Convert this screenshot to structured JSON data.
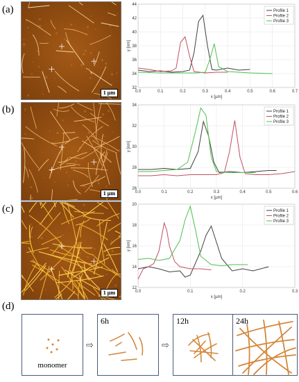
{
  "panels": [
    {
      "letter": "(a)",
      "scale": "1 μm"
    },
    {
      "letter": "(b)",
      "scale": "1 μm"
    },
    {
      "letter": "(c)",
      "scale": "1 μm"
    }
  ],
  "panel_d_letter": "(d)",
  "stages": {
    "monomer": "monomer",
    "t1": "6h",
    "t2": "12h",
    "t3": "24h"
  },
  "series_colors": [
    "#404040",
    "#c0505f",
    "#4dbf4d"
  ],
  "chart_data": [
    {
      "type": "line",
      "xlabel": "x [μm]",
      "ylabel": "y [nm]",
      "xlim": [
        0,
        0.7
      ],
      "ylim": [
        32,
        44
      ],
      "xticks": [
        0.0,
        0.1,
        0.2,
        0.3,
        0.4,
        0.5,
        0.6,
        0.7
      ],
      "yticks": [
        32,
        34,
        36,
        38,
        40,
        42,
        44
      ],
      "legend": "top-right",
      "series": [
        {
          "name": "Profile 1",
          "x": [
            0.0,
            0.05,
            0.1,
            0.15,
            0.2,
            0.23,
            0.25,
            0.27,
            0.29,
            0.31,
            0.33,
            0.35,
            0.4,
            0.45,
            0.5
          ],
          "y": [
            34.5,
            34.3,
            34.4,
            34.2,
            34.3,
            34.5,
            37.0,
            41.5,
            42.4,
            38.0,
            34.6,
            34.5,
            34.8,
            34.5,
            34.6
          ]
        },
        {
          "name": "Profile 2",
          "x": [
            0.0,
            0.05,
            0.1,
            0.15,
            0.17,
            0.19,
            0.21,
            0.23,
            0.25,
            0.3,
            0.35,
            0.4
          ],
          "y": [
            34.8,
            34.6,
            34.3,
            34.4,
            34.8,
            38.5,
            39.3,
            36.5,
            34.3,
            34.1,
            34.2,
            34.2
          ]
        },
        {
          "name": "Profile 3",
          "x": [
            0.0,
            0.1,
            0.2,
            0.26,
            0.3,
            0.32,
            0.34,
            0.36,
            0.4,
            0.5,
            0.6
          ],
          "y": [
            34.2,
            34.1,
            34.1,
            34.1,
            34.2,
            36.0,
            38.3,
            35.0,
            34.3,
            34.1,
            34.0
          ]
        }
      ]
    },
    {
      "type": "line",
      "xlabel": "x [μm]",
      "ylabel": "y [nm]",
      "xlim": [
        0,
        0.6
      ],
      "ylim": [
        26,
        34
      ],
      "xticks": [
        0.0,
        0.1,
        0.2,
        0.3,
        0.4,
        0.5,
        0.6
      ],
      "yticks": [
        26,
        28,
        30,
        32,
        34
      ],
      "legend": "top-right",
      "series": [
        {
          "name": "Profile 1",
          "x": [
            0.0,
            0.05,
            0.1,
            0.15,
            0.2,
            0.23,
            0.25,
            0.27,
            0.29,
            0.31,
            0.35,
            0.4,
            0.45,
            0.5,
            0.53
          ],
          "y": [
            27.8,
            27.8,
            27.9,
            27.8,
            27.9,
            29.5,
            32.4,
            31.0,
            28.5,
            27.5,
            27.6,
            27.5,
            27.6,
            27.7,
            27.7
          ]
        },
        {
          "name": "Profile 2",
          "x": [
            0.0,
            0.05,
            0.1,
            0.15,
            0.2,
            0.25,
            0.3,
            0.33,
            0.35,
            0.37,
            0.39,
            0.41,
            0.45,
            0.5,
            0.55,
            0.6
          ],
          "y": [
            27.2,
            27.2,
            27.3,
            27.2,
            27.3,
            27.3,
            27.3,
            27.5,
            29.5,
            32.5,
            29.0,
            27.4,
            27.3,
            27.3,
            27.4,
            27.6
          ]
        },
        {
          "name": "Profile 3",
          "x": [
            0.0,
            0.05,
            0.1,
            0.15,
            0.19,
            0.22,
            0.24,
            0.26,
            0.28,
            0.3,
            0.35,
            0.4,
            0.45
          ],
          "y": [
            27.6,
            27.6,
            27.7,
            27.8,
            28.5,
            31.5,
            33.7,
            33.0,
            29.0,
            27.6,
            27.5,
            27.5,
            27.5
          ]
        }
      ]
    },
    {
      "type": "line",
      "xlabel": "x [μm]",
      "ylabel": "y [nm]",
      "xlim": [
        0,
        0.3
      ],
      "ylim": [
        12,
        20
      ],
      "xticks": [
        0.0,
        0.1,
        0.2,
        0.3
      ],
      "yticks": [
        12,
        14,
        16,
        18,
        20
      ],
      "legend": "top-right",
      "series": [
        {
          "name": "Profile 1",
          "x": [
            0.0,
            0.02,
            0.04,
            0.06,
            0.08,
            0.09,
            0.1,
            0.12,
            0.13,
            0.14,
            0.16,
            0.18,
            0.2,
            0.22,
            0.25
          ],
          "y": [
            13.8,
            14.0,
            13.8,
            13.5,
            13.6,
            13.0,
            13.2,
            15.5,
            17.0,
            17.9,
            14.8,
            13.6,
            13.8,
            13.6,
            14.0
          ]
        },
        {
          "name": "Profile 2",
          "x": [
            0.0,
            0.01,
            0.02,
            0.03,
            0.04,
            0.05,
            0.055,
            0.06,
            0.07,
            0.08,
            0.1,
            0.12,
            0.14
          ],
          "y": [
            12.8,
            13.8,
            14.0,
            14.3,
            15.5,
            18.2,
            17.5,
            16.0,
            14.5,
            14.0,
            13.8,
            13.8,
            13.7
          ]
        },
        {
          "name": "Profile 3",
          "x": [
            0.0,
            0.02,
            0.04,
            0.06,
            0.08,
            0.09,
            0.1,
            0.11,
            0.12,
            0.14,
            0.16,
            0.18,
            0.21
          ],
          "y": [
            14.7,
            14.8,
            14.6,
            14.8,
            16.5,
            18.5,
            19.8,
            17.5,
            15.0,
            14.2,
            14.1,
            14.2,
            14.2
          ]
        }
      ]
    }
  ]
}
